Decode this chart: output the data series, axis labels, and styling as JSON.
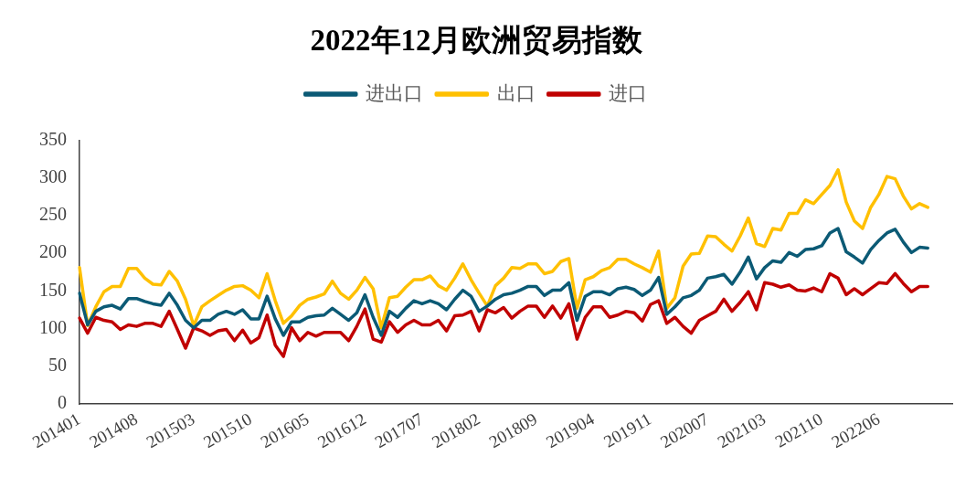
{
  "chart_data": {
    "type": "line",
    "title": "2022年12月欧洲贸易指数",
    "categories": [
      "201401",
      null,
      null,
      null,
      null,
      null,
      null,
      "201408",
      null,
      null,
      null,
      null,
      null,
      null,
      "201503",
      null,
      null,
      null,
      null,
      null,
      null,
      "201510",
      null,
      null,
      null,
      null,
      null,
      null,
      "201605",
      null,
      null,
      null,
      null,
      null,
      null,
      "201612",
      null,
      null,
      null,
      null,
      null,
      null,
      "201707",
      null,
      null,
      null,
      null,
      null,
      null,
      "201802",
      null,
      null,
      null,
      null,
      null,
      null,
      "201809",
      null,
      null,
      null,
      null,
      null,
      null,
      "201904",
      null,
      null,
      null,
      null,
      null,
      null,
      "201911",
      null,
      null,
      null,
      null,
      null,
      null,
      "202007",
      null,
      null,
      null,
      null,
      null,
      null,
      "202103",
      null,
      null,
      null,
      null,
      null,
      null,
      "202110",
      null,
      null,
      null,
      null,
      null,
      null,
      "202206",
      null,
      null,
      null,
      null,
      null,
      null,
      null,
      null,
      null
    ],
    "series": [
      {
        "name": "进出口",
        "color": "#0b5a75",
        "values": [
          147,
          105,
          123,
          129,
          131,
          126,
          140,
          140,
          136,
          133,
          131,
          147,
          131,
          111,
          101,
          111,
          111,
          119,
          123,
          119,
          125,
          113,
          113,
          143,
          113,
          91,
          109,
          109,
          115,
          117,
          118,
          127,
          119,
          111,
          121,
          145,
          115,
          91,
          123,
          115,
          127,
          137,
          133,
          137,
          133,
          125,
          139,
          151,
          143,
          123,
          130,
          139,
          145,
          147,
          151,
          156,
          156,
          144,
          151,
          151,
          161,
          111,
          143,
          149,
          149,
          145,
          153,
          155,
          152,
          144,
          151,
          168,
          119,
          129,
          141,
          144,
          151,
          167,
          169,
          172,
          159,
          175,
          195,
          166,
          181,
          190,
          188,
          201,
          196,
          205,
          206,
          210,
          227,
          233,
          202,
          195,
          187,
          205,
          217,
          227,
          232,
          215,
          201,
          208,
          207,
          null,
          null,
          null
        ]
      },
      {
        "name": "出口",
        "color": "#ffc000",
        "values": [
          181,
          104,
          129,
          149,
          156,
          156,
          180,
          180,
          167,
          159,
          158,
          176,
          163,
          139,
          104,
          129,
          137,
          144,
          151,
          156,
          157,
          151,
          141,
          173,
          137,
          107,
          117,
          131,
          139,
          142,
          146,
          163,
          147,
          139,
          151,
          168,
          153,
          101,
          141,
          143,
          155,
          165,
          165,
          170,
          157,
          151,
          167,
          186,
          165,
          147,
          130,
          157,
          167,
          181,
          180,
          186,
          186,
          173,
          176,
          189,
          193,
          127,
          165,
          169,
          177,
          181,
          192,
          192,
          186,
          181,
          175,
          203,
          127,
          141,
          183,
          199,
          200,
          223,
          222,
          212,
          203,
          223,
          247,
          213,
          209,
          233,
          231,
          253,
          253,
          271,
          266,
          278,
          290,
          311,
          268,
          243,
          233,
          261,
          278,
          302,
          299,
          276,
          259,
          266,
          261,
          null,
          null,
          null
        ]
      },
      {
        "name": "进口",
        "color": "#c00000",
        "values": [
          114,
          94,
          115,
          111,
          109,
          99,
          105,
          103,
          107,
          107,
          103,
          123,
          99,
          74,
          101,
          97,
          91,
          97,
          99,
          84,
          98,
          81,
          88,
          118,
          78,
          63,
          101,
          84,
          95,
          90,
          95,
          95,
          95,
          84,
          103,
          126,
          86,
          82,
          109,
          95,
          105,
          111,
          105,
          105,
          111,
          97,
          117,
          118,
          123,
          97,
          125,
          121,
          128,
          114,
          123,
          130,
          130,
          115,
          130,
          114,
          133,
          86,
          115,
          129,
          129,
          115,
          118,
          123,
          121,
          110,
          132,
          137,
          107,
          115,
          103,
          94,
          111,
          117,
          123,
          139,
          123,
          135,
          149,
          125,
          161,
          159,
          155,
          158,
          151,
          150,
          154,
          149,
          173,
          167,
          145,
          153,
          145,
          153,
          161,
          160,
          173,
          160,
          149,
          156,
          156,
          null,
          null,
          null
        ]
      }
    ],
    "ylim": [
      0,
      350
    ],
    "yticks": [
      0,
      50,
      100,
      150,
      200,
      250,
      300,
      350
    ],
    "grid": false,
    "legend": "top",
    "marker": "none",
    "line_style": "solid"
  }
}
